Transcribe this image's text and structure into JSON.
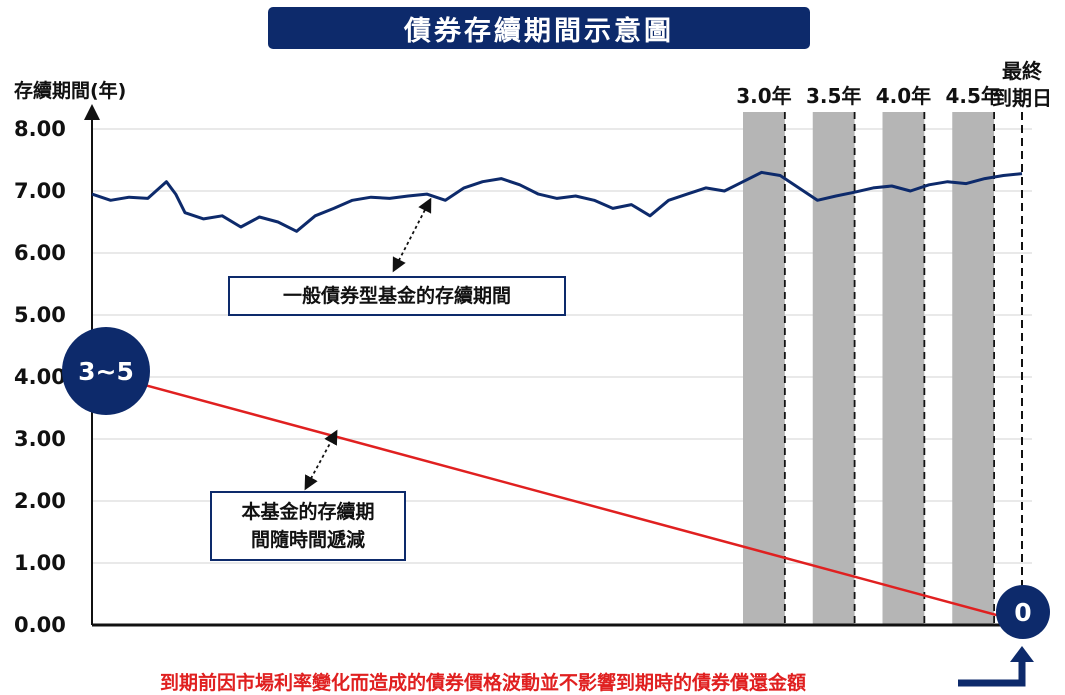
{
  "title": "債券存續期間示意圖",
  "chart_data": {
    "type": "line",
    "ylabel": "存續期間(年)",
    "ylim": [
      0,
      8
    ],
    "yticks": [
      "8.00",
      "7.00",
      "6.00",
      "5.00",
      "4.00",
      "3.00",
      "2.00",
      "1.00",
      "0.00"
    ],
    "ytick_values": [
      8,
      7,
      6,
      5,
      4,
      3,
      2,
      1,
      0
    ],
    "grid": true,
    "series": [
      {
        "name": "一般債券型基金的存續期間",
        "color": "#0d2a6b",
        "x": [
          0,
          0.02,
          0.04,
          0.06,
          0.08,
          0.09,
          0.1,
          0.12,
          0.14,
          0.16,
          0.18,
          0.2,
          0.22,
          0.24,
          0.26,
          0.28,
          0.3,
          0.32,
          0.34,
          0.36,
          0.38,
          0.4,
          0.42,
          0.44,
          0.46,
          0.48,
          0.5,
          0.52,
          0.54,
          0.56,
          0.58,
          0.6,
          0.62,
          0.64,
          0.66,
          0.68,
          0.7,
          0.72,
          0.74,
          0.76,
          0.78,
          0.8,
          0.82,
          0.84,
          0.86,
          0.88,
          0.9,
          0.92,
          0.94,
          0.96,
          0.98,
          1.0
        ],
        "values": [
          6.95,
          6.85,
          6.9,
          6.88,
          7.15,
          6.95,
          6.65,
          6.55,
          6.6,
          6.42,
          6.58,
          6.5,
          6.35,
          6.6,
          6.72,
          6.85,
          6.9,
          6.88,
          6.92,
          6.95,
          6.85,
          7.05,
          7.15,
          7.2,
          7.1,
          6.95,
          6.88,
          6.92,
          6.85,
          6.72,
          6.78,
          6.6,
          6.85,
          6.95,
          7.05,
          7.0,
          7.15,
          7.3,
          7.25,
          7.05,
          6.85,
          6.92,
          6.98,
          7.05,
          7.08,
          7.0,
          7.1,
          7.15,
          7.12,
          7.2,
          7.25,
          7.28
        ]
      },
      {
        "name": "本基金的存續期間隨時間遞減",
        "color": "#e02020",
        "x": [
          0,
          1
        ],
        "values": [
          4.1,
          0.05
        ]
      }
    ],
    "period_bands": [
      {
        "label": "3.0年",
        "x0": 0.7,
        "x1": 0.745
      },
      {
        "label": "3.5年",
        "x0": 0.775,
        "x1": 0.82
      },
      {
        "label": "4.0年",
        "x0": 0.85,
        "x1": 0.895
      },
      {
        "label": "4.5年",
        "x0": 0.925,
        "x1": 0.97
      }
    ],
    "maturity_label_line1": "最終",
    "maturity_label_line2": "到期日",
    "annotations": {
      "general_fund_box": "一般債券型基金的存續期間",
      "this_fund_box_line1": "本基金的存續期",
      "this_fund_box_line2": "間隨時間遞減",
      "start_badge": "3~5",
      "end_badge": "0"
    },
    "footnote": "到期前因市場利率變化而造成的債券價格波動並不影響到期時的債券償還金額",
    "colors": {
      "navy": "#0d2a6b",
      "red": "#e02020",
      "band_gray": "#b5b5b5",
      "grid": "#e2e2e2"
    }
  }
}
